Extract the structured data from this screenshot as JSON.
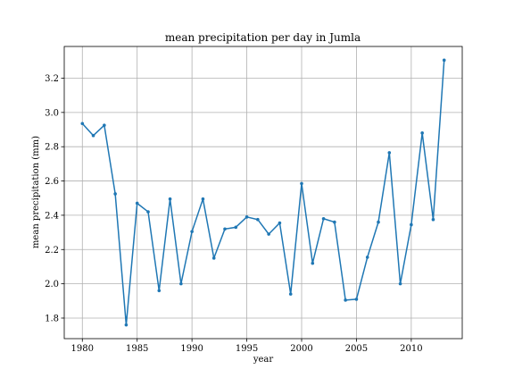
{
  "chart_data": {
    "type": "line",
    "title": "mean precipitation per day in Jumla",
    "xlabel": "year",
    "ylabel": "mean precipitation (mm)",
    "xlim": [
      1978.35,
      2014.65
    ],
    "ylim": [
      1.68,
      3.385
    ],
    "xticks": [
      1980,
      1985,
      1990,
      1995,
      2000,
      2005,
      2010
    ],
    "yticks": [
      1.8,
      2.0,
      2.2,
      2.4,
      2.6,
      2.8,
      3.0,
      3.2
    ],
    "grid": true,
    "color": "#1f77b4",
    "marker": "circle",
    "series": [
      {
        "x": [
          1980,
          1981,
          1982,
          1983,
          1984,
          1985,
          1986,
          1987,
          1988,
          1989,
          1990,
          1991,
          1992,
          1993,
          1994,
          1995,
          1996,
          1997,
          1998,
          1999,
          2000,
          2001,
          2002,
          2003,
          2004,
          2005,
          2006,
          2007,
          2008,
          2009,
          2010,
          2011,
          2012,
          2013
        ],
        "values": [
          2.935,
          2.865,
          2.925,
          2.525,
          1.76,
          2.47,
          2.42,
          1.96,
          2.495,
          2.0,
          2.305,
          2.495,
          2.15,
          2.32,
          2.33,
          2.39,
          2.375,
          2.29,
          2.355,
          1.94,
          2.585,
          2.12,
          2.38,
          2.36,
          1.905,
          1.91,
          2.155,
          2.36,
          2.765,
          2.0,
          2.345,
          2.88,
          2.375,
          3.305
        ]
      }
    ]
  }
}
